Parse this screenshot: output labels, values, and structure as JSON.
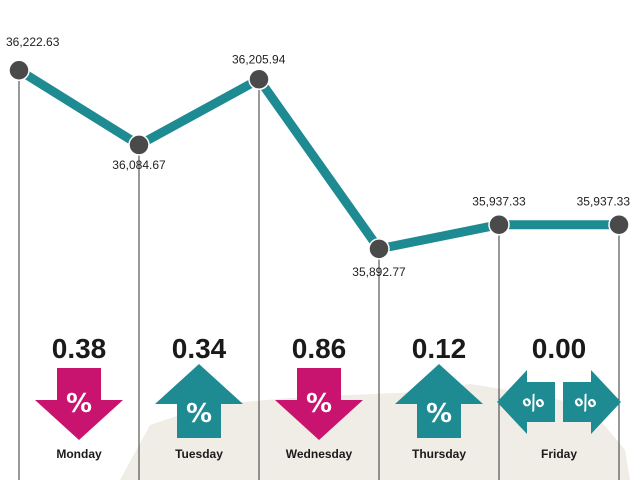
{
  "chart_data": {
    "type": "line",
    "title": "",
    "xlabel": "",
    "ylabel": "",
    "ylim": [
      35850,
      36260
    ],
    "grid": false,
    "points": [
      {
        "label": "36,222.63",
        "value": 36222.63
      },
      {
        "label": "36,084.67",
        "value": 36084.67
      },
      {
        "label": "36,205.94",
        "value": 36205.94
      },
      {
        "label": "35,892.77",
        "value": 35892.77
      },
      {
        "label": "35,937.33",
        "value": 35937.33
      },
      {
        "label": "35,937.33",
        "value": 35937.33
      }
    ],
    "days": [
      {
        "name": "Monday",
        "change": "0.38",
        "direction": "down"
      },
      {
        "name": "Tuesday",
        "change": "0.34",
        "direction": "up"
      },
      {
        "name": "Wednesday",
        "change": "0.86",
        "direction": "down"
      },
      {
        "name": "Thursday",
        "change": "0.12",
        "direction": "up"
      },
      {
        "name": "Friday",
        "change": "0.00",
        "direction": "flat"
      }
    ],
    "percent_symbol": "%"
  },
  "colors": {
    "line": "#1e8b93",
    "marker": "#4a4a4a",
    "up": "#1e8b93",
    "down": "#c8146e",
    "flat": "#1e8b93",
    "gridline": "#333333",
    "map": "#f0ece6"
  }
}
